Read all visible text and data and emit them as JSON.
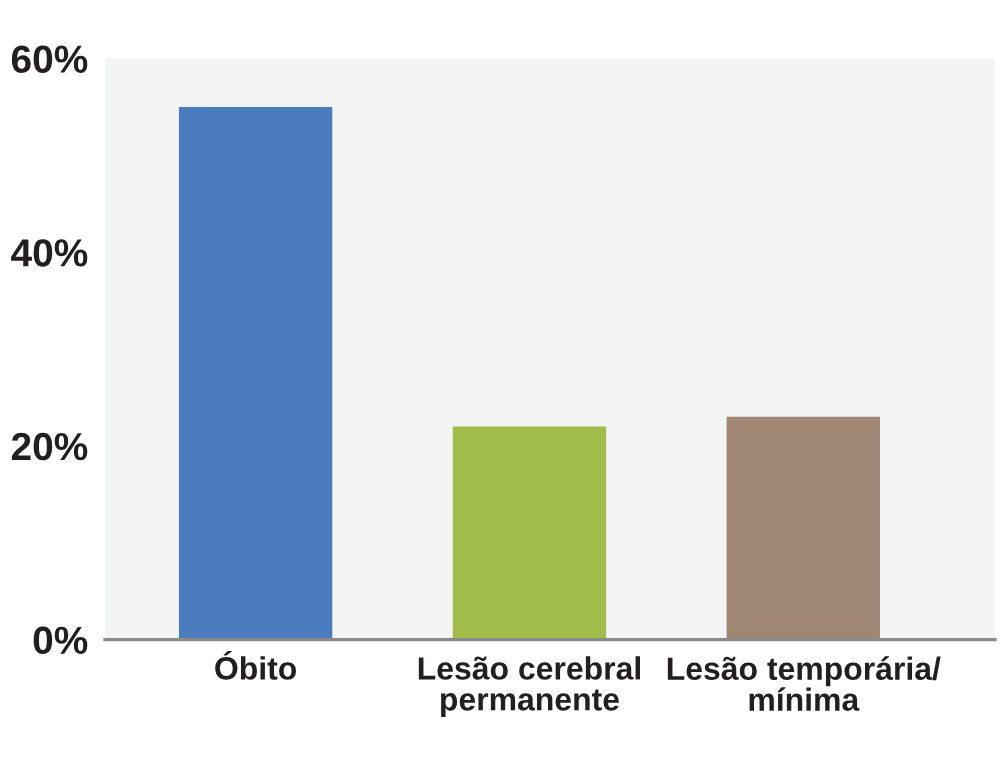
{
  "chart_data": {
    "type": "bar",
    "categories": [
      "Óbito",
      "Lesão cerebral\npermanente",
      "Lesão temporária/\nmínima"
    ],
    "values": [
      55,
      22,
      23
    ],
    "colors": [
      "#4a7bbf",
      "#a2bc4a",
      "#a08774"
    ],
    "ylim": [
      0,
      60
    ],
    "yticks": [
      {
        "value": 0,
        "label": "0%"
      },
      {
        "value": 20,
        "label": "20%"
      },
      {
        "value": 40,
        "label": "40%"
      },
      {
        "value": 60,
        "label": "60%"
      }
    ],
    "grid": false
  }
}
